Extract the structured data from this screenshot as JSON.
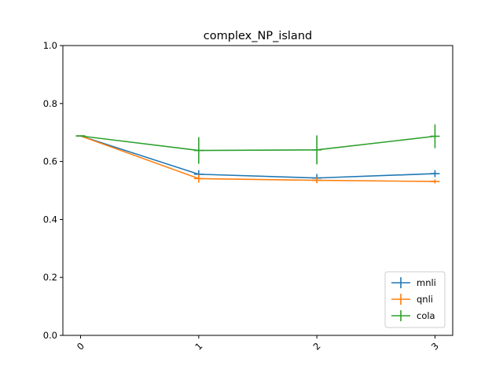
{
  "chart_data": {
    "type": "line",
    "title": "complex_NP_island",
    "xlabel": "",
    "ylabel": "",
    "x": [
      0,
      1,
      2,
      3
    ],
    "xticks": [
      "0",
      "1",
      "2",
      "3"
    ],
    "yticks": [
      "0.0",
      "0.2",
      "0.4",
      "0.6",
      "0.8",
      "1.0"
    ],
    "xlim": [
      -0.15,
      3.15
    ],
    "ylim": [
      0.0,
      1.0
    ],
    "grid": false,
    "legend_position": "lower-right",
    "series": [
      {
        "name": "mnli",
        "color": "#1f77b4",
        "values": [
          0.688,
          0.556,
          0.543,
          0.558
        ],
        "errors": [
          0.0,
          0.014,
          0.014,
          0.012
        ]
      },
      {
        "name": "qnli",
        "color": "#ff7f0e",
        "values": [
          0.688,
          0.541,
          0.535,
          0.531
        ],
        "errors": [
          0.0,
          0.014,
          0.01,
          0.007
        ]
      },
      {
        "name": "cola",
        "color": "#2ca02c",
        "values": [
          0.688,
          0.638,
          0.64,
          0.687
        ],
        "errors": [
          0.0,
          0.046,
          0.05,
          0.041
        ]
      }
    ]
  }
}
